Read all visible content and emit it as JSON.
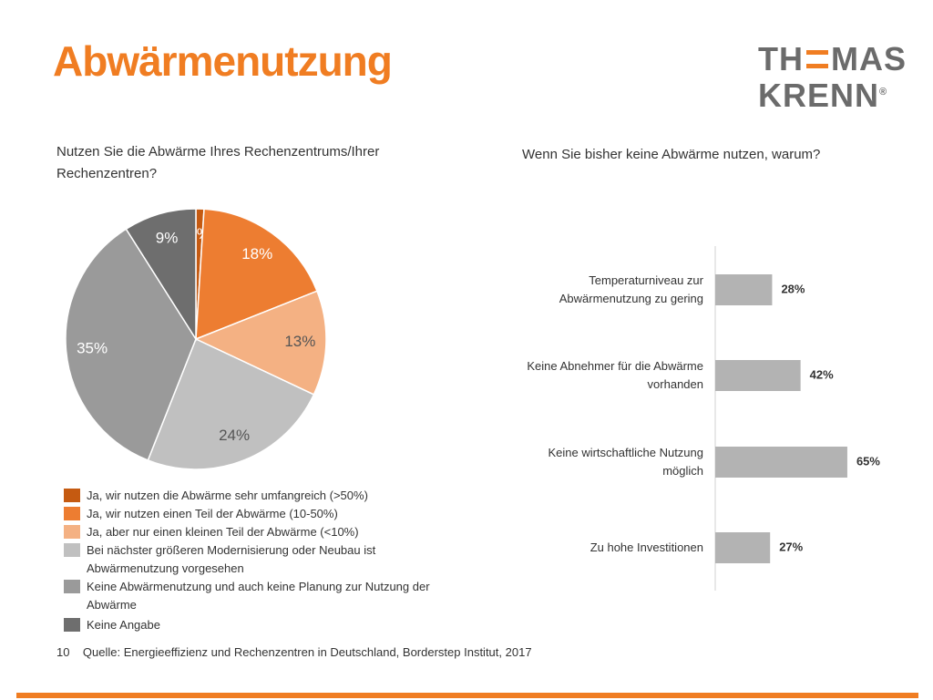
{
  "header": {
    "title": "Abwärmenutzung",
    "logo": {
      "part1": "TH",
      "part2": "MAS",
      "line2": "KRENN",
      "mark": "®"
    }
  },
  "chart_data": [
    {
      "type": "pie",
      "title": "Nutzen Sie die Abwärme Ihres Rechenzentrums/Ihrer Rechenzentren?",
      "categories": [
        "Ja, wir nutzen die Abwärme sehr umfangreich (>50%)",
        "Ja, wir nutzen einen Teil der Abwärme (10-50%)",
        "Ja, aber nur einen kleinen Teil der Abwärme (<10%)",
        "Bei nächster größeren Modernisierung oder Neubau ist Abwärmenutzung vorgesehen",
        "Keine Abwärmenutzung und auch keine Planung zur Nutzung der Abwärme",
        "Keine Angabe"
      ],
      "values": [
        1,
        18,
        13,
        24,
        35,
        9
      ],
      "value_labels": [
        "1%",
        "18%",
        "13%",
        "24%",
        "35%",
        "9%"
      ],
      "colors": [
        "#c55a11",
        "#ed7d31",
        "#f4b183",
        "#c0c0c0",
        "#9a9a9a",
        "#6e6e6e"
      ]
    },
    {
      "type": "bar",
      "orientation": "horizontal",
      "title": "Wenn Sie bisher keine Abwärme nutzen, warum?",
      "categories": [
        "Temperaturniveau zur Abwärmenutzung zu gering",
        "Keine Abnehmer für die Abwärme vorhanden",
        "Keine wirtschaftliche Nutzung möglich",
        "Zu hohe Investitionen"
      ],
      "values": [
        28,
        42,
        65,
        27
      ],
      "value_labels": [
        "28%",
        "42%",
        "65%",
        "27%"
      ],
      "color": "#b3b3b3"
    }
  ],
  "footer": {
    "page": "10",
    "source": "Quelle: Energieeffizienz und Rechenzentren in Deutschland, Borderstep Institut, 2017"
  }
}
